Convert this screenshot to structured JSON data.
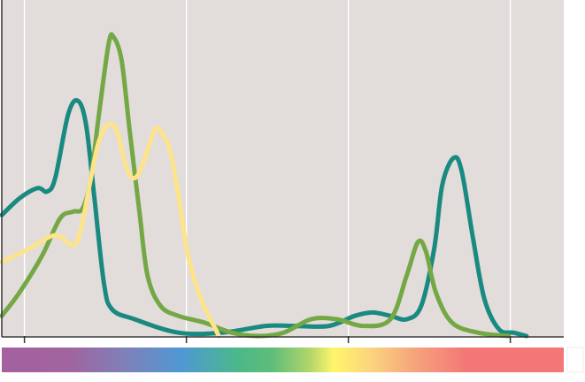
{
  "chart_data": {
    "type": "line",
    "xlim": [
      386,
      733
    ],
    "ylim": [
      0,
      1
    ],
    "xticks": [
      400,
      500,
      600,
      700
    ],
    "grid": true,
    "series": [
      {
        "color": "#1a8a80",
        "x": [
          386,
          397,
          408,
          414,
          419,
          427,
          433,
          438,
          443,
          449,
          454,
          468,
          495,
          522,
          549,
          566,
          588,
          604,
          615,
          626,
          636,
          645,
          653,
          658,
          665,
          670,
          677,
          684,
          693,
          702,
          710
        ],
        "values": [
          0.36,
          0.41,
          0.44,
          0.43,
          0.47,
          0.66,
          0.7,
          0.63,
          0.42,
          0.16,
          0.08,
          0.05,
          0.01,
          0.01,
          0.03,
          0.03,
          0.03,
          0.06,
          0.07,
          0.06,
          0.05,
          0.09,
          0.26,
          0.45,
          0.53,
          0.49,
          0.29,
          0.11,
          0.02,
          0.01,
          0
        ]
      },
      {
        "color": "#74a845",
        "x": [
          386,
          397,
          411,
          422,
          430,
          436,
          441,
          446,
          452,
          455,
          460,
          465,
          471,
          476,
          484,
          495,
          511,
          528,
          544,
          560,
          577,
          593,
          609,
          626,
          636,
          643,
          648,
          654,
          664,
          680,
          699
        ],
        "values": [
          0.06,
          0.13,
          0.24,
          0.35,
          0.37,
          0.38,
          0.47,
          0.66,
          0.87,
          0.89,
          0.82,
          0.61,
          0.37,
          0.18,
          0.09,
          0.06,
          0.04,
          0.01,
          0,
          0.01,
          0.05,
          0.05,
          0.03,
          0.05,
          0.18,
          0.28,
          0.25,
          0.13,
          0.04,
          0.01,
          0
        ]
      },
      {
        "color": "#fde48a",
        "x": [
          386,
          403,
          419,
          430,
          435,
          441,
          446,
          452,
          457,
          463,
          468,
          473,
          480,
          484,
          490,
          495,
          501,
          509,
          517,
          520
        ],
        "values": [
          0.22,
          0.26,
          0.3,
          0.27,
          0.32,
          0.47,
          0.58,
          0.63,
          0.61,
          0.5,
          0.47,
          0.51,
          0.61,
          0.61,
          0.55,
          0.42,
          0.24,
          0.11,
          0.03,
          0
        ]
      }
    ]
  }
}
